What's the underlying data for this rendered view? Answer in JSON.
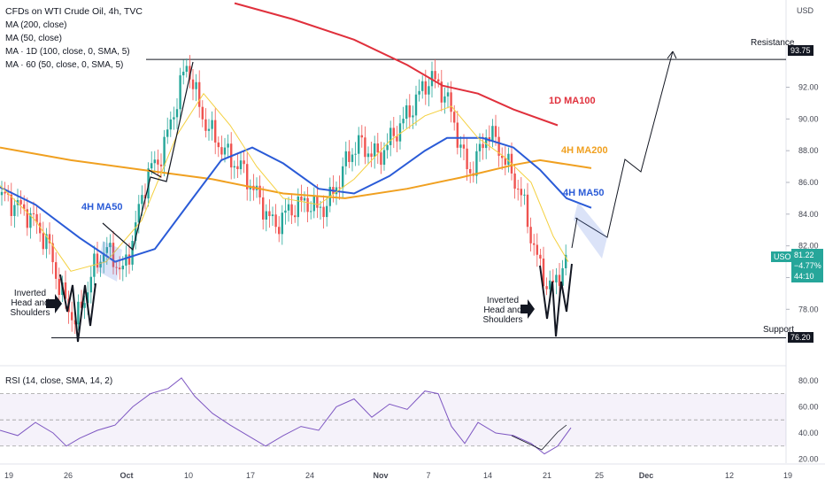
{
  "legend": {
    "title": "CFDs on WTI Crude Oil, 4h, TVC",
    "lines": [
      "MA (200, close)",
      "MA (50, close)",
      "MA · 1D (100, close, 0, SMA, 5)",
      "MA · 60 (50, close, 0, SMA, 5)"
    ]
  },
  "rsi_label": "RSI (14, close, SMA, 14, 2)",
  "currency": "USD",
  "annotations": {
    "resistance": "Resistance",
    "support": "Support",
    "ihs_left": [
      "Inverted",
      "Head and",
      "Shoulders"
    ],
    "ihs_right": [
      "Inverted",
      "Head and",
      "Shoulders"
    ],
    "ma100_1d": "1D MA100",
    "ma200_4h": "4H MA200",
    "ma50_4h_right": "4H MA50",
    "ma50_4h_left": "4H MA50"
  },
  "price_tags": {
    "resistance": "93.75",
    "support": "76.20",
    "symbol": "USOIL",
    "last": "81.22",
    "change": "−4.77%",
    "countdown": "44:10"
  },
  "colors": {
    "ma100": "#e0303c",
    "ma200": "#f0a020",
    "ma50": "#2a5bd7",
    "fast_ma": "#f4d03f",
    "up": "#26a69a",
    "down": "#ef5350",
    "rsi": "#7e57c2",
    "tag_green": "#26a69a",
    "tag_dark": "#131722"
  },
  "chart_data": {
    "type": "line",
    "price_axis": {
      "ylim": [
        74.5,
        97.5
      ],
      "ticks": [
        78,
        80,
        82,
        84,
        86,
        88,
        90,
        92
      ]
    },
    "rsi_axis": {
      "ylim": [
        17,
        90
      ],
      "ticks": [
        20,
        40,
        60,
        80
      ],
      "bands": [
        30,
        50,
        70
      ]
    },
    "x_ticks": [
      "19",
      "26",
      "Oct",
      "10",
      "17",
      "24",
      "Nov",
      "7",
      "14",
      "21",
      "25",
      "Dec",
      "12",
      "19"
    ],
    "resistance_level": 93.75,
    "support_level": 76.2,
    "price_path": [
      [
        0,
        85.2
      ],
      [
        14,
        84.7
      ],
      [
        28,
        84.2
      ],
      [
        42,
        83.3
      ],
      [
        56,
        81.8
      ],
      [
        68,
        79.2
      ],
      [
        78,
        78.0
      ],
      [
        86,
        77.2
      ],
      [
        96,
        78.8
      ],
      [
        106,
        80.6
      ],
      [
        118,
        81.8
      ],
      [
        128,
        81.3
      ],
      [
        138,
        80.2
      ],
      [
        148,
        82.0
      ],
      [
        158,
        84.5
      ],
      [
        168,
        86.8
      ],
      [
        178,
        87.2
      ],
      [
        188,
        88.8
      ],
      [
        198,
        90.8
      ],
      [
        206,
        92.6
      ],
      [
        212,
        93.5
      ],
      [
        220,
        91.8
      ],
      [
        228,
        90.2
      ],
      [
        238,
        89.2
      ],
      [
        250,
        88.2
      ],
      [
        262,
        87.4
      ],
      [
        274,
        86.8
      ],
      [
        286,
        85.6
      ],
      [
        298,
        84.4
      ],
      [
        310,
        83.2
      ],
      [
        322,
        84.0
      ],
      [
        334,
        84.5
      ],
      [
        346,
        84.8
      ],
      [
        358,
        84.3
      ],
      [
        370,
        84.6
      ],
      [
        380,
        85.8
      ],
      [
        392,
        87.4
      ],
      [
        404,
        88.5
      ],
      [
        416,
        88.0
      ],
      [
        428,
        87.6
      ],
      [
        440,
        88.6
      ],
      [
        452,
        89.6
      ],
      [
        464,
        90.6
      ],
      [
        476,
        91.8
      ],
      [
        486,
        92.6
      ],
      [
        494,
        92.2
      ],
      [
        504,
        91.4
      ],
      [
        514,
        89.6
      ],
      [
        522,
        87.8
      ],
      [
        530,
        86.6
      ],
      [
        540,
        87.6
      ],
      [
        550,
        89.2
      ],
      [
        560,
        88.6
      ],
      [
        570,
        87.4
      ],
      [
        580,
        86.4
      ],
      [
        590,
        85.0
      ],
      [
        600,
        82.6
      ],
      [
        610,
        80.6
      ],
      [
        618,
        79.6
      ],
      [
        626,
        79.4
      ],
      [
        634,
        80.6
      ],
      [
        642,
        81.2
      ]
    ],
    "series": [
      {
        "name": "MA (200, close)",
        "points": [
          [
            0,
            88.2
          ],
          [
            80,
            87.4
          ],
          [
            160,
            86.8
          ],
          [
            240,
            86.2
          ],
          [
            320,
            85.3
          ],
          [
            390,
            85.0
          ],
          [
            460,
            85.6
          ],
          [
            520,
            86.3
          ],
          [
            580,
            87.1
          ],
          [
            610,
            87.4
          ],
          [
            668,
            86.9
          ]
        ]
      },
      {
        "name": "MA (50, close)",
        "points": [
          [
            0,
            85.7
          ],
          [
            40,
            84.6
          ],
          [
            90,
            82.5
          ],
          [
            130,
            81.0
          ],
          [
            175,
            81.8
          ],
          [
            215,
            84.8
          ],
          [
            250,
            87.4
          ],
          [
            285,
            88.2
          ],
          [
            320,
            87.2
          ],
          [
            360,
            85.6
          ],
          [
            400,
            85.3
          ],
          [
            440,
            86.4
          ],
          [
            480,
            88.0
          ],
          [
            505,
            88.8
          ],
          [
            545,
            88.8
          ],
          [
            580,
            88.2
          ],
          [
            610,
            86.8
          ],
          [
            640,
            85.0
          ],
          [
            668,
            84.4
          ]
        ]
      },
      {
        "name": "MA · 1D (100, close, 0, SMA, 5)",
        "points": [
          [
            265,
            97.3
          ],
          [
            330,
            96.3
          ],
          [
            400,
            95.0
          ],
          [
            460,
            93.4
          ],
          [
            500,
            92.1
          ],
          [
            540,
            91.6
          ],
          [
            580,
            90.6
          ],
          [
            630,
            89.6
          ]
        ]
      },
      {
        "name": "MA · 60 (50, close, 0, SMA, 5)",
        "points": [
          [
            0,
            85.8
          ],
          [
            40,
            83.6
          ],
          [
            80,
            80.4
          ],
          [
            120,
            81.0
          ],
          [
            160,
            83.6
          ],
          [
            200,
            89.0
          ],
          [
            230,
            91.6
          ],
          [
            260,
            89.6
          ],
          [
            290,
            87.0
          ],
          [
            320,
            85.0
          ],
          [
            360,
            84.6
          ],
          [
            400,
            86.2
          ],
          [
            440,
            88.6
          ],
          [
            480,
            90.2
          ],
          [
            510,
            90.8
          ],
          [
            540,
            88.8
          ],
          [
            570,
            87.6
          ],
          [
            600,
            86.0
          ],
          [
            625,
            82.6
          ],
          [
            642,
            81.0
          ]
        ]
      },
      {
        "name": "RSI (14, close, SMA, 14, 2)",
        "points": [
          [
            0,
            42
          ],
          [
            20,
            38
          ],
          [
            40,
            48
          ],
          [
            60,
            40
          ],
          [
            75,
            30
          ],
          [
            90,
            36
          ],
          [
            110,
            42
          ],
          [
            130,
            46
          ],
          [
            150,
            60
          ],
          [
            170,
            70
          ],
          [
            190,
            74
          ],
          [
            205,
            82
          ],
          [
            220,
            68
          ],
          [
            240,
            55
          ],
          [
            260,
            46
          ],
          [
            280,
            38
          ],
          [
            300,
            30
          ],
          [
            320,
            38
          ],
          [
            340,
            45
          ],
          [
            360,
            42
          ],
          [
            380,
            60
          ],
          [
            400,
            66
          ],
          [
            420,
            52
          ],
          [
            440,
            62
          ],
          [
            460,
            58
          ],
          [
            480,
            72
          ],
          [
            495,
            70
          ],
          [
            510,
            45
          ],
          [
            525,
            32
          ],
          [
            540,
            48
          ],
          [
            560,
            40
          ],
          [
            580,
            38
          ],
          [
            600,
            32
          ],
          [
            615,
            24
          ],
          [
            630,
            30
          ],
          [
            645,
            44
          ]
        ]
      }
    ]
  }
}
